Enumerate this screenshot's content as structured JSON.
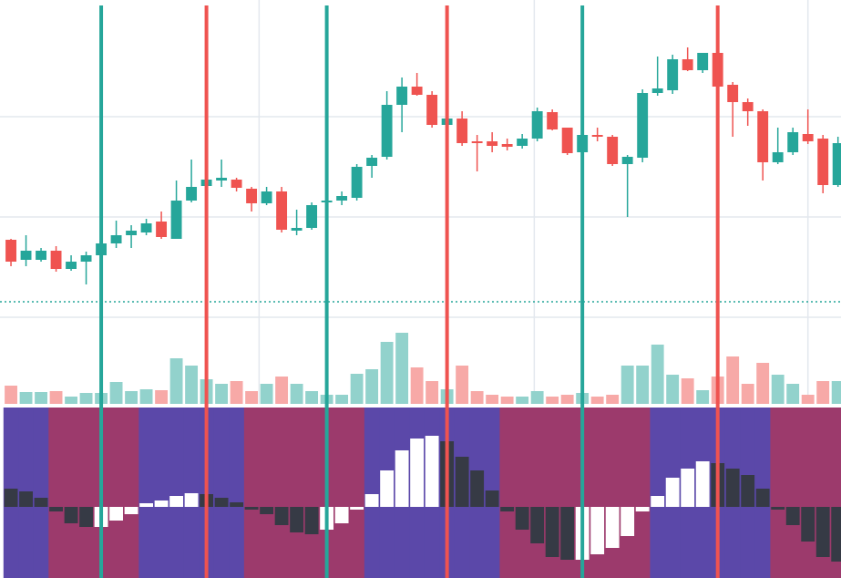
{
  "chart_data": {
    "type": "candlestick",
    "open": [
      180,
      158,
      158,
      168,
      148,
      156,
      163,
      176,
      185,
      188,
      200,
      181,
      223,
      239,
      245,
      246,
      236,
      220,
      233,
      190,
      193,
      221,
      223,
      226,
      261,
      271,
      328,
      348,
      339,
      306,
      313,
      288,
      288,
      285,
      283,
      291,
      320,
      303,
      276,
      295,
      293,
      263,
      270,
      341,
      344,
      378,
      366,
      385,
      350,
      331,
      321,
      265,
      276,
      296,
      291,
      240
    ],
    "high": [
      181,
      185,
      171,
      173,
      163,
      167,
      193,
      201,
      196,
      203,
      211,
      245,
      268,
      275,
      268,
      248,
      238,
      238,
      238,
      213,
      221,
      226,
      233,
      263,
      273,
      343,
      358,
      363,
      343,
      328,
      321,
      295,
      298,
      291,
      296,
      325,
      323,
      303,
      303,
      303,
      295,
      273,
      345,
      381,
      383,
      391,
      385,
      388,
      353,
      335,
      323,
      303,
      303,
      323,
      295,
      293
    ],
    "low": [
      151,
      151,
      156,
      145,
      146,
      131,
      158,
      171,
      171,
      185,
      181,
      181,
      221,
      233,
      238,
      233,
      211,
      218,
      188,
      185,
      191,
      217,
      218,
      223,
      248,
      268,
      298,
      338,
      303,
      295,
      283,
      255,
      276,
      278,
      280,
      288,
      300,
      273,
      271,
      288,
      261,
      205,
      265,
      338,
      340,
      365,
      363,
      343,
      293,
      305,
      245,
      263,
      273,
      285,
      231,
      238
    ],
    "close": [
      156,
      168,
      168,
      148,
      156,
      163,
      176,
      185,
      190,
      198,
      183,
      223,
      238,
      246,
      248,
      237,
      220,
      233,
      191,
      193,
      218,
      223,
      228,
      260,
      270,
      328,
      348,
      339,
      306,
      313,
      286,
      286,
      283,
      282,
      291,
      321,
      301,
      275,
      295,
      293,
      263,
      271,
      341,
      346,
      378,
      366,
      385,
      348,
      331,
      321,
      265,
      276,
      298,
      288,
      240,
      286
    ],
    "volume": [
      20,
      13,
      13,
      14,
      8,
      12,
      12,
      24,
      14,
      16,
      15,
      50,
      42,
      27,
      22,
      25,
      14,
      22,
      30,
      22,
      14,
      10,
      10,
      33,
      38,
      68,
      78,
      40,
      25,
      16,
      42,
      14,
      10,
      8,
      8,
      14,
      8,
      10,
      12,
      8,
      10,
      42,
      42,
      65,
      32,
      28,
      15,
      30,
      52,
      22,
      45,
      32,
      22,
      10,
      25,
      25
    ],
    "oscillator": [
      20,
      17,
      10,
      -5,
      -18,
      -22,
      -22,
      -15,
      -8,
      4,
      7,
      12,
      15,
      14,
      10,
      5,
      -3,
      -8,
      -20,
      -28,
      -30,
      -25,
      -18,
      -3,
      14,
      40,
      62,
      75,
      78,
      72,
      55,
      40,
      18,
      -5,
      -25,
      -40,
      -55,
      -58,
      -58,
      -52,
      -45,
      -32,
      -5,
      12,
      32,
      42,
      50,
      48,
      42,
      35,
      20,
      -3,
      -20,
      -38,
      -55,
      -60
    ],
    "xlim": [
      -0.73,
      55.2
    ],
    "xticks": [
      16.5,
      34.8,
      53
    ],
    "ylim": [
      0,
      443
    ],
    "yticks": [
      95,
      205,
      315
    ],
    "price_line": 112,
    "osc_ylim": [
      -78,
      109
    ],
    "grid": true,
    "up_color": "#26a69a",
    "down_color": "#ef5350",
    "up_volume_color": "#92d2cc",
    "down_volume_color": "#f7a9a7",
    "positive_band_color": "#5b48a9",
    "negative_band_color": "#9c3a6c",
    "rising_bar_color": "#ffffff",
    "falling_bar_color": "#363a45"
  }
}
